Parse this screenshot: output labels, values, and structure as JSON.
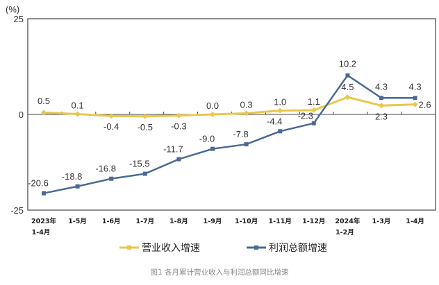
{
  "chart_data": {
    "type": "line",
    "unit": "(%)",
    "caption": "图1 各月累计营业收入与利润总额同比增速",
    "categories": [
      [
        "2023年",
        "1-4月"
      ],
      [
        "1-5月"
      ],
      [
        "1-6月"
      ],
      [
        "1-7月"
      ],
      [
        "1-8月"
      ],
      [
        "1-9月"
      ],
      [
        "1-10月"
      ],
      [
        "1-11月"
      ],
      [
        "1-12月"
      ],
      [
        "2024年",
        "1-2月"
      ],
      [
        "1-3月"
      ],
      [
        "1-4月"
      ]
    ],
    "ylim": [
      -25,
      25
    ],
    "yticks": [
      "25",
      "0",
      "-25"
    ],
    "grid": false,
    "legend_position": "bottom",
    "series": [
      {
        "name": "营业收入增速",
        "color": "#e8c84a",
        "values": [
          0.5,
          0.1,
          -0.4,
          -0.5,
          -0.3,
          0.0,
          0.3,
          1.0,
          1.1,
          4.5,
          2.3,
          2.6
        ],
        "labels": [
          "0.5",
          "0.1",
          "-0.4",
          "-0.5",
          "-0.3",
          "0.0",
          "0.3",
          "1.0",
          "1.1",
          "4.5",
          "2.3",
          "2.6"
        ]
      },
      {
        "name": "利润总额增速",
        "color": "#4a6a94",
        "values": [
          -20.6,
          -18.8,
          -16.8,
          -15.5,
          -11.7,
          -9.0,
          -7.8,
          -4.4,
          -2.3,
          10.2,
          4.3,
          4.3
        ],
        "labels": [
          "-20.6",
          "-18.8",
          "-16.8",
          "-15.5",
          "-11.7",
          "-9.0",
          "-7.8",
          "-4.4",
          "-2.3",
          "10.2",
          "4.3",
          "4.3"
        ]
      }
    ]
  }
}
